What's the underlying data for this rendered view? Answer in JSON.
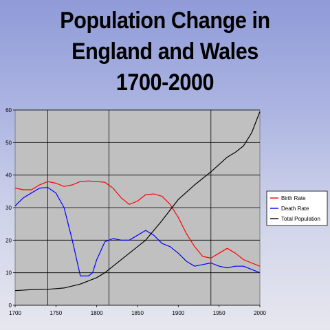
{
  "chart_data": {
    "type": "line",
    "title": [
      "Population Change in",
      "England and Wales",
      "1700-2000"
    ],
    "xlim": [
      1700,
      2000
    ],
    "ylim": [
      0,
      60
    ],
    "xticks": [
      1700,
      1750,
      1800,
      1850,
      1900,
      1950,
      2000
    ],
    "yticks": [
      0,
      10,
      20,
      30,
      40,
      50,
      60
    ],
    "vertical_gridlines_at": [
      1740,
      1815,
      1940
    ],
    "grid": "horizontal",
    "legend_position": "right",
    "series": [
      {
        "name": "Birth Rate",
        "color": "#ff0000",
        "x": [
          1700,
          1710,
          1720,
          1730,
          1740,
          1750,
          1760,
          1770,
          1780,
          1790,
          1800,
          1810,
          1820,
          1830,
          1840,
          1850,
          1860,
          1870,
          1880,
          1890,
          1900,
          1910,
          1920,
          1930,
          1940,
          1950,
          1960,
          1970,
          1980,
          1990,
          2000
        ],
        "y": [
          36,
          35.5,
          35.5,
          37,
          38,
          37.5,
          36.5,
          37,
          38,
          38.2,
          38,
          37.8,
          36,
          33,
          31,
          32,
          34,
          34.2,
          33.5,
          31,
          27,
          22,
          18,
          15,
          14.5,
          16,
          17.5,
          16,
          14,
          13,
          12
        ]
      },
      {
        "name": "Death Rate",
        "color": "#0000ff",
        "x": [
          1700,
          1710,
          1720,
          1730,
          1740,
          1750,
          1760,
          1770,
          1780,
          1790,
          1795,
          1800,
          1810,
          1820,
          1830,
          1840,
          1850,
          1860,
          1870,
          1880,
          1890,
          1900,
          1910,
          1920,
          1930,
          1940,
          1950,
          1960,
          1970,
          1980,
          1990,
          2000
        ],
        "y": [
          30.5,
          33,
          34.5,
          36,
          36.2,
          34.5,
          30,
          20,
          9,
          9,
          10,
          14,
          19.5,
          20.5,
          20,
          20,
          21.5,
          23,
          21.5,
          19,
          18,
          16,
          13.5,
          12,
          12.5,
          13,
          12,
          11.5,
          12,
          12,
          11,
          10
        ]
      },
      {
        "name": "Total Population",
        "color": "#000000",
        "x": [
          1700,
          1720,
          1740,
          1760,
          1780,
          1800,
          1810,
          1820,
          1840,
          1860,
          1880,
          1900,
          1920,
          1940,
          1960,
          1970,
          1980,
          1990,
          2000
        ],
        "y": [
          4.5,
          4.8,
          4.9,
          5.3,
          6.5,
          8.5,
          10,
          12,
          16,
          20,
          26,
          32.5,
          37,
          41,
          45.5,
          47,
          49,
          53,
          59.5
        ]
      }
    ]
  }
}
